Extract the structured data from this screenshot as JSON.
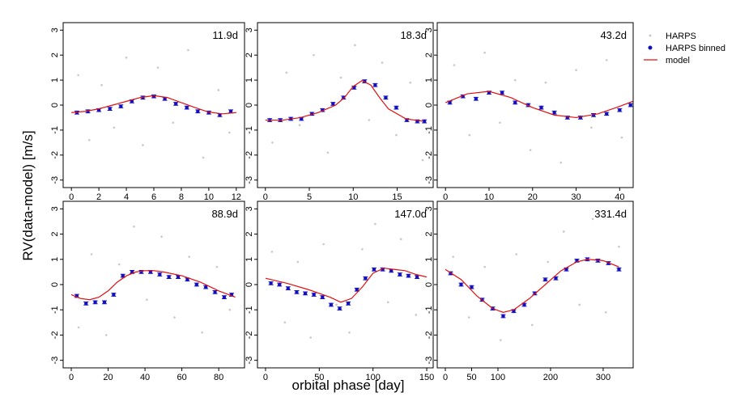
{
  "ylabel": "RV(data-model) [m/s]",
  "xlabel": "orbital phase [day]",
  "chart_data": [
    {
      "type": "scatter",
      "annotation": "11.9d",
      "xlim": [
        -0.6,
        12.6
      ],
      "ylim": [
        -3.3,
        3.3
      ],
      "xticks": [
        0,
        2,
        4,
        6,
        8,
        10,
        12
      ],
      "yticks": [
        -3,
        -2,
        -1,
        0,
        1,
        2,
        3
      ],
      "legend": "right",
      "series": [
        {
          "name": "HARPS",
          "color": "#c8c8c8",
          "kind": "points",
          "x": [
            0.5,
            1.3,
            2.2,
            3.1,
            4.0,
            5.2,
            6.3,
            7.4,
            8.5,
            9.6,
            10.7,
            11.5
          ],
          "values": [
            1.2,
            -1.4,
            0.8,
            -0.9,
            1.9,
            -1.6,
            1.5,
            -0.7,
            2.2,
            -2.1,
            0.6,
            -1.1
          ]
        },
        {
          "name": "HARPS binned",
          "color": "#1010c0",
          "kind": "errorbar",
          "x": [
            0.4,
            1.2,
            2,
            2.8,
            3.6,
            4.4,
            5.2,
            6,
            6.8,
            7.6,
            8.4,
            9.2,
            10,
            10.8,
            11.6
          ],
          "values": [
            -0.3,
            -0.25,
            -0.2,
            -0.15,
            -0.05,
            0.15,
            0.3,
            0.35,
            0.25,
            0.05,
            -0.1,
            -0.25,
            -0.3,
            -0.4,
            -0.25
          ],
          "errors": [
            0.06,
            0.06,
            0.06,
            0.06,
            0.06,
            0.06,
            0.06,
            0.06,
            0.06,
            0.06,
            0.06,
            0.06,
            0.06,
            0.06,
            0.06
          ]
        },
        {
          "name": "model",
          "color": "#e01010",
          "kind": "line",
          "x": [
            0,
            1,
            2,
            3,
            4,
            5,
            6,
            7,
            8,
            9,
            10,
            11,
            12
          ],
          "values": [
            -0.3,
            -0.25,
            -0.15,
            0,
            0.15,
            0.3,
            0.38,
            0.3,
            0.1,
            -0.1,
            -0.28,
            -0.35,
            -0.3
          ]
        }
      ]
    },
    {
      "type": "scatter",
      "annotation": "18.3d",
      "xlim": [
        -0.9,
        19.1
      ],
      "ylim": [
        -3.3,
        3.3
      ],
      "xticks": [
        0,
        5,
        10,
        15
      ],
      "yticks": [
        -3,
        -2,
        -1,
        0,
        1,
        2,
        3
      ],
      "series": [
        {
          "name": "HARPS",
          "color": "#c8c8c8",
          "kind": "points",
          "x": [
            0.8,
            2.4,
            3.9,
            5.5,
            7.1,
            8.6,
            10.2,
            11.8,
            13.3,
            14.9,
            16.5,
            17.9
          ],
          "values": [
            -1.5,
            1.3,
            -0.8,
            2.0,
            -1.9,
            1.1,
            2.4,
            -0.6,
            1.7,
            -1.2,
            0.9,
            -2.2
          ]
        },
        {
          "name": "HARPS binned",
          "color": "#1010c0",
          "kind": "errorbar",
          "x": [
            0.5,
            1.7,
            2.9,
            4.1,
            5.3,
            6.5,
            7.7,
            8.9,
            10.1,
            11.3,
            12.5,
            13.7,
            14.9,
            16.1,
            17.3,
            18.1
          ],
          "values": [
            -0.6,
            -0.6,
            -0.55,
            -0.55,
            -0.35,
            -0.2,
            0.05,
            0.3,
            0.7,
            0.95,
            0.8,
            0.3,
            -0.1,
            -0.6,
            -0.65,
            -0.65
          ],
          "errors": [
            0.06,
            0.06,
            0.06,
            0.06,
            0.06,
            0.06,
            0.06,
            0.06,
            0.06,
            0.06,
            0.06,
            0.06,
            0.06,
            0.06,
            0.06,
            0.06
          ]
        },
        {
          "name": "model",
          "color": "#e01010",
          "kind": "line",
          "x": [
            0,
            2,
            4,
            6,
            8,
            9,
            10,
            11,
            12,
            13,
            14,
            16,
            18
          ],
          "values": [
            -0.6,
            -0.6,
            -0.5,
            -0.3,
            0,
            0.3,
            0.75,
            0.98,
            0.8,
            0.3,
            -0.15,
            -0.55,
            -0.65
          ]
        }
      ]
    },
    {
      "type": "scatter",
      "annotation": "43.2d",
      "xlim": [
        -1.9,
        43.1
      ],
      "ylim": [
        -3.3,
        3.3
      ],
      "xticks": [
        0,
        10,
        20,
        30,
        40
      ],
      "yticks": [
        -3,
        -2,
        -1,
        0,
        1,
        2,
        3
      ],
      "series": [
        {
          "name": "HARPS",
          "color": "#c8c8c8",
          "kind": "points",
          "x": [
            2,
            5.5,
            9,
            12.5,
            16,
            19.5,
            23,
            26.5,
            30,
            33.5,
            37,
            40.5
          ],
          "values": [
            1.6,
            -1.2,
            2.1,
            -0.7,
            1.0,
            -1.8,
            0.9,
            -2.3,
            1.4,
            -0.9,
            1.8,
            -1.3
          ]
        },
        {
          "name": "HARPS binned",
          "color": "#1010c0",
          "kind": "errorbar",
          "x": [
            1,
            4,
            7,
            10,
            13,
            16,
            19,
            22,
            25,
            28,
            31,
            34,
            37,
            40,
            42.5
          ],
          "values": [
            0.1,
            0.35,
            0.25,
            0.5,
            0.5,
            0.1,
            0,
            -0.1,
            -0.3,
            -0.5,
            -0.5,
            -0.4,
            -0.35,
            -0.2,
            0
          ],
          "errors": [
            0.06,
            0.06,
            0.06,
            0.06,
            0.06,
            0.06,
            0.06,
            0.06,
            0.06,
            0.06,
            0.06,
            0.06,
            0.06,
            0.06,
            0.06
          ]
        },
        {
          "name": "model",
          "color": "#e01010",
          "kind": "line",
          "x": [
            0,
            5,
            10,
            15,
            20,
            25,
            30,
            35,
            40,
            43
          ],
          "values": [
            0.1,
            0.45,
            0.55,
            0.3,
            -0.1,
            -0.4,
            -0.5,
            -0.35,
            -0.05,
            0.15
          ]
        }
      ]
    },
    {
      "type": "scatter",
      "annotation": "88.9d",
      "xlim": [
        -4.4,
        94
      ],
      "ylim": [
        -3.3,
        3.3
      ],
      "xticks": [
        0,
        20,
        40,
        60,
        80
      ],
      "yticks": [
        -3,
        -2,
        -1,
        0,
        1,
        2,
        3
      ],
      "series": [
        {
          "name": "HARPS",
          "color": "#c8c8c8",
          "kind": "points",
          "x": [
            4,
            11,
            19,
            26,
            34,
            41,
            49,
            56,
            64,
            71,
            79,
            86
          ],
          "values": [
            -1.7,
            1.2,
            -2.0,
            0.8,
            2.3,
            -0.6,
            1.9,
            -1.3,
            1.1,
            -1.9,
            0.7,
            -1.0
          ]
        },
        {
          "name": "HARPS binned",
          "color": "#1010c0",
          "kind": "errorbar",
          "x": [
            3,
            8,
            13,
            18,
            23,
            28,
            33,
            38,
            43,
            48,
            53,
            58,
            63,
            68,
            73,
            78,
            83,
            87
          ],
          "values": [
            -0.45,
            -0.75,
            -0.7,
            -0.7,
            -0.4,
            0.35,
            0.5,
            0.5,
            0.5,
            0.4,
            0.3,
            0.3,
            0.2,
            0,
            -0.1,
            -0.3,
            -0.5,
            -0.4
          ],
          "errors": [
            0.06,
            0.06,
            0.06,
            0.06,
            0.06,
            0.06,
            0.06,
            0.06,
            0.06,
            0.06,
            0.06,
            0.06,
            0.06,
            0.06,
            0.06,
            0.06,
            0.06,
            0.06
          ]
        },
        {
          "name": "model",
          "color": "#e01010",
          "kind": "line",
          "x": [
            0,
            5,
            10,
            15,
            20,
            25,
            30,
            35,
            40,
            45,
            50,
            60,
            70,
            80,
            89
          ],
          "values": [
            -0.4,
            -0.55,
            -0.6,
            -0.5,
            -0.25,
            0.1,
            0.35,
            0.5,
            0.55,
            0.55,
            0.5,
            0.35,
            0.1,
            -0.25,
            -0.5
          ]
        }
      ]
    },
    {
      "type": "scatter",
      "annotation": "147.0d",
      "xlim": [
        -7.5,
        156
      ],
      "ylim": [
        -3.3,
        3.3
      ],
      "xticks": [
        0,
        50,
        100,
        150
      ],
      "yticks": [
        -3,
        -2,
        -1,
        0,
        1,
        2,
        3
      ],
      "series": [
        {
          "name": "HARPS",
          "color": "#c8c8c8",
          "kind": "points",
          "x": [
            6,
            18,
            30,
            42,
            54,
            66,
            78,
            90,
            102,
            114,
            126,
            140
          ],
          "values": [
            1.3,
            -1.5,
            0.9,
            -2.1,
            1.6,
            -0.8,
            -1.9,
            1.4,
            2.4,
            -0.7,
            1.8,
            -1.2
          ]
        },
        {
          "name": "HARPS binned",
          "color": "#1010c0",
          "kind": "errorbar",
          "x": [
            5,
            13,
            21,
            29,
            37,
            45,
            53,
            61,
            69,
            77,
            85,
            93,
            101,
            109,
            117,
            125,
            133,
            141
          ],
          "values": [
            0.05,
            0,
            -0.15,
            -0.3,
            -0.35,
            -0.4,
            -0.5,
            -0.8,
            -0.95,
            -0.75,
            -0.2,
            0.25,
            0.6,
            0.6,
            0.55,
            0.4,
            0.35,
            0.3
          ],
          "errors": [
            0.06,
            0.06,
            0.06,
            0.06,
            0.06,
            0.06,
            0.06,
            0.06,
            0.06,
            0.06,
            0.06,
            0.06,
            0.06,
            0.06,
            0.06,
            0.06,
            0.06,
            0.06
          ]
        },
        {
          "name": "model",
          "color": "#e01010",
          "kind": "line",
          "x": [
            0,
            20,
            40,
            60,
            70,
            80,
            90,
            100,
            110,
            120,
            130,
            140,
            150
          ],
          "values": [
            0.25,
            0.05,
            -0.2,
            -0.5,
            -0.7,
            -0.55,
            -0.1,
            0.45,
            0.65,
            0.6,
            0.55,
            0.4,
            0.3
          ]
        }
      ]
    },
    {
      "type": "scatter",
      "annotation": "331.4d",
      "xlim": [
        -15.4,
        357
      ],
      "ylim": [
        -3.3,
        3.3
      ],
      "xticks": [
        0,
        50,
        100,
        200,
        300
      ],
      "yticks": [
        -3,
        -2,
        -1,
        0,
        1,
        2,
        3
      ],
      "series": [
        {
          "name": "HARPS",
          "color": "#c8c8c8",
          "kind": "points",
          "x": [
            15,
            45,
            75,
            105,
            135,
            165,
            195,
            225,
            255,
            280,
            305,
            330
          ],
          "values": [
            1.1,
            -1.3,
            0.7,
            -2.2,
            1.2,
            -1.6,
            0.9,
            2.1,
            -0.8,
            2.6,
            -1.1,
            1.5
          ]
        },
        {
          "name": "HARPS binned",
          "color": "#1010c0",
          "kind": "errorbar",
          "x": [
            10,
            30,
            50,
            70,
            90,
            110,
            130,
            150,
            170,
            190,
            210,
            230,
            250,
            270,
            290,
            310,
            330
          ],
          "values": [
            0.45,
            0,
            -0.1,
            -0.6,
            -0.95,
            -1.25,
            -1.05,
            -0.8,
            -0.35,
            0.2,
            0.25,
            0.6,
            0.95,
            1.0,
            0.95,
            0.85,
            0.6
          ],
          "errors": [
            0.06,
            0.06,
            0.06,
            0.06,
            0.06,
            0.06,
            0.06,
            0.06,
            0.06,
            0.06,
            0.06,
            0.06,
            0.06,
            0.06,
            0.06,
            0.06,
            0.06
          ]
        },
        {
          "name": "model",
          "color": "#e01010",
          "kind": "line",
          "x": [
            0,
            30,
            60,
            90,
            110,
            130,
            160,
            190,
            220,
            250,
            270,
            300,
            330
          ],
          "values": [
            0.6,
            0.2,
            -0.45,
            -0.95,
            -1.1,
            -1,
            -0.55,
            0,
            0.55,
            0.9,
            1.0,
            0.95,
            0.7
          ]
        }
      ]
    }
  ]
}
